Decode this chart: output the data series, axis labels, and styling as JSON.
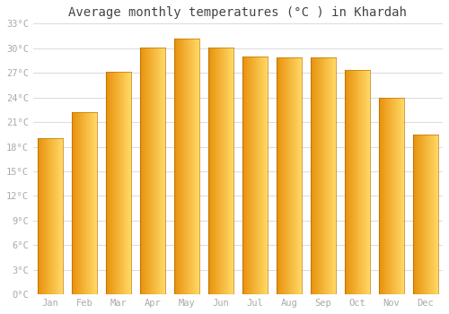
{
  "months": [
    "Jan",
    "Feb",
    "Mar",
    "Apr",
    "May",
    "Jun",
    "Jul",
    "Aug",
    "Sep",
    "Oct",
    "Nov",
    "Dec"
  ],
  "temperatures": [
    19.0,
    22.2,
    27.1,
    30.1,
    31.2,
    30.1,
    29.0,
    28.9,
    28.9,
    27.4,
    24.0,
    19.5
  ],
  "bar_color_left": "#E8900A",
  "bar_color_right": "#FFD966",
  "bar_border_color": "#C07800",
  "title": "Average monthly temperatures (°C ) in Khardah",
  "ylim": [
    0,
    33
  ],
  "yticks": [
    0,
    3,
    6,
    9,
    12,
    15,
    18,
    21,
    24,
    27,
    30,
    33
  ],
  "ytick_labels": [
    "0°C",
    "3°C",
    "6°C",
    "9°C",
    "12°C",
    "15°C",
    "18°C",
    "21°C",
    "24°C",
    "27°C",
    "30°C",
    "33°C"
  ],
  "background_color": "#ffffff",
  "grid_color": "#dddddd",
  "title_fontsize": 10,
  "tick_fontsize": 7.5,
  "tick_color": "#aaaaaa",
  "bar_width": 0.75
}
